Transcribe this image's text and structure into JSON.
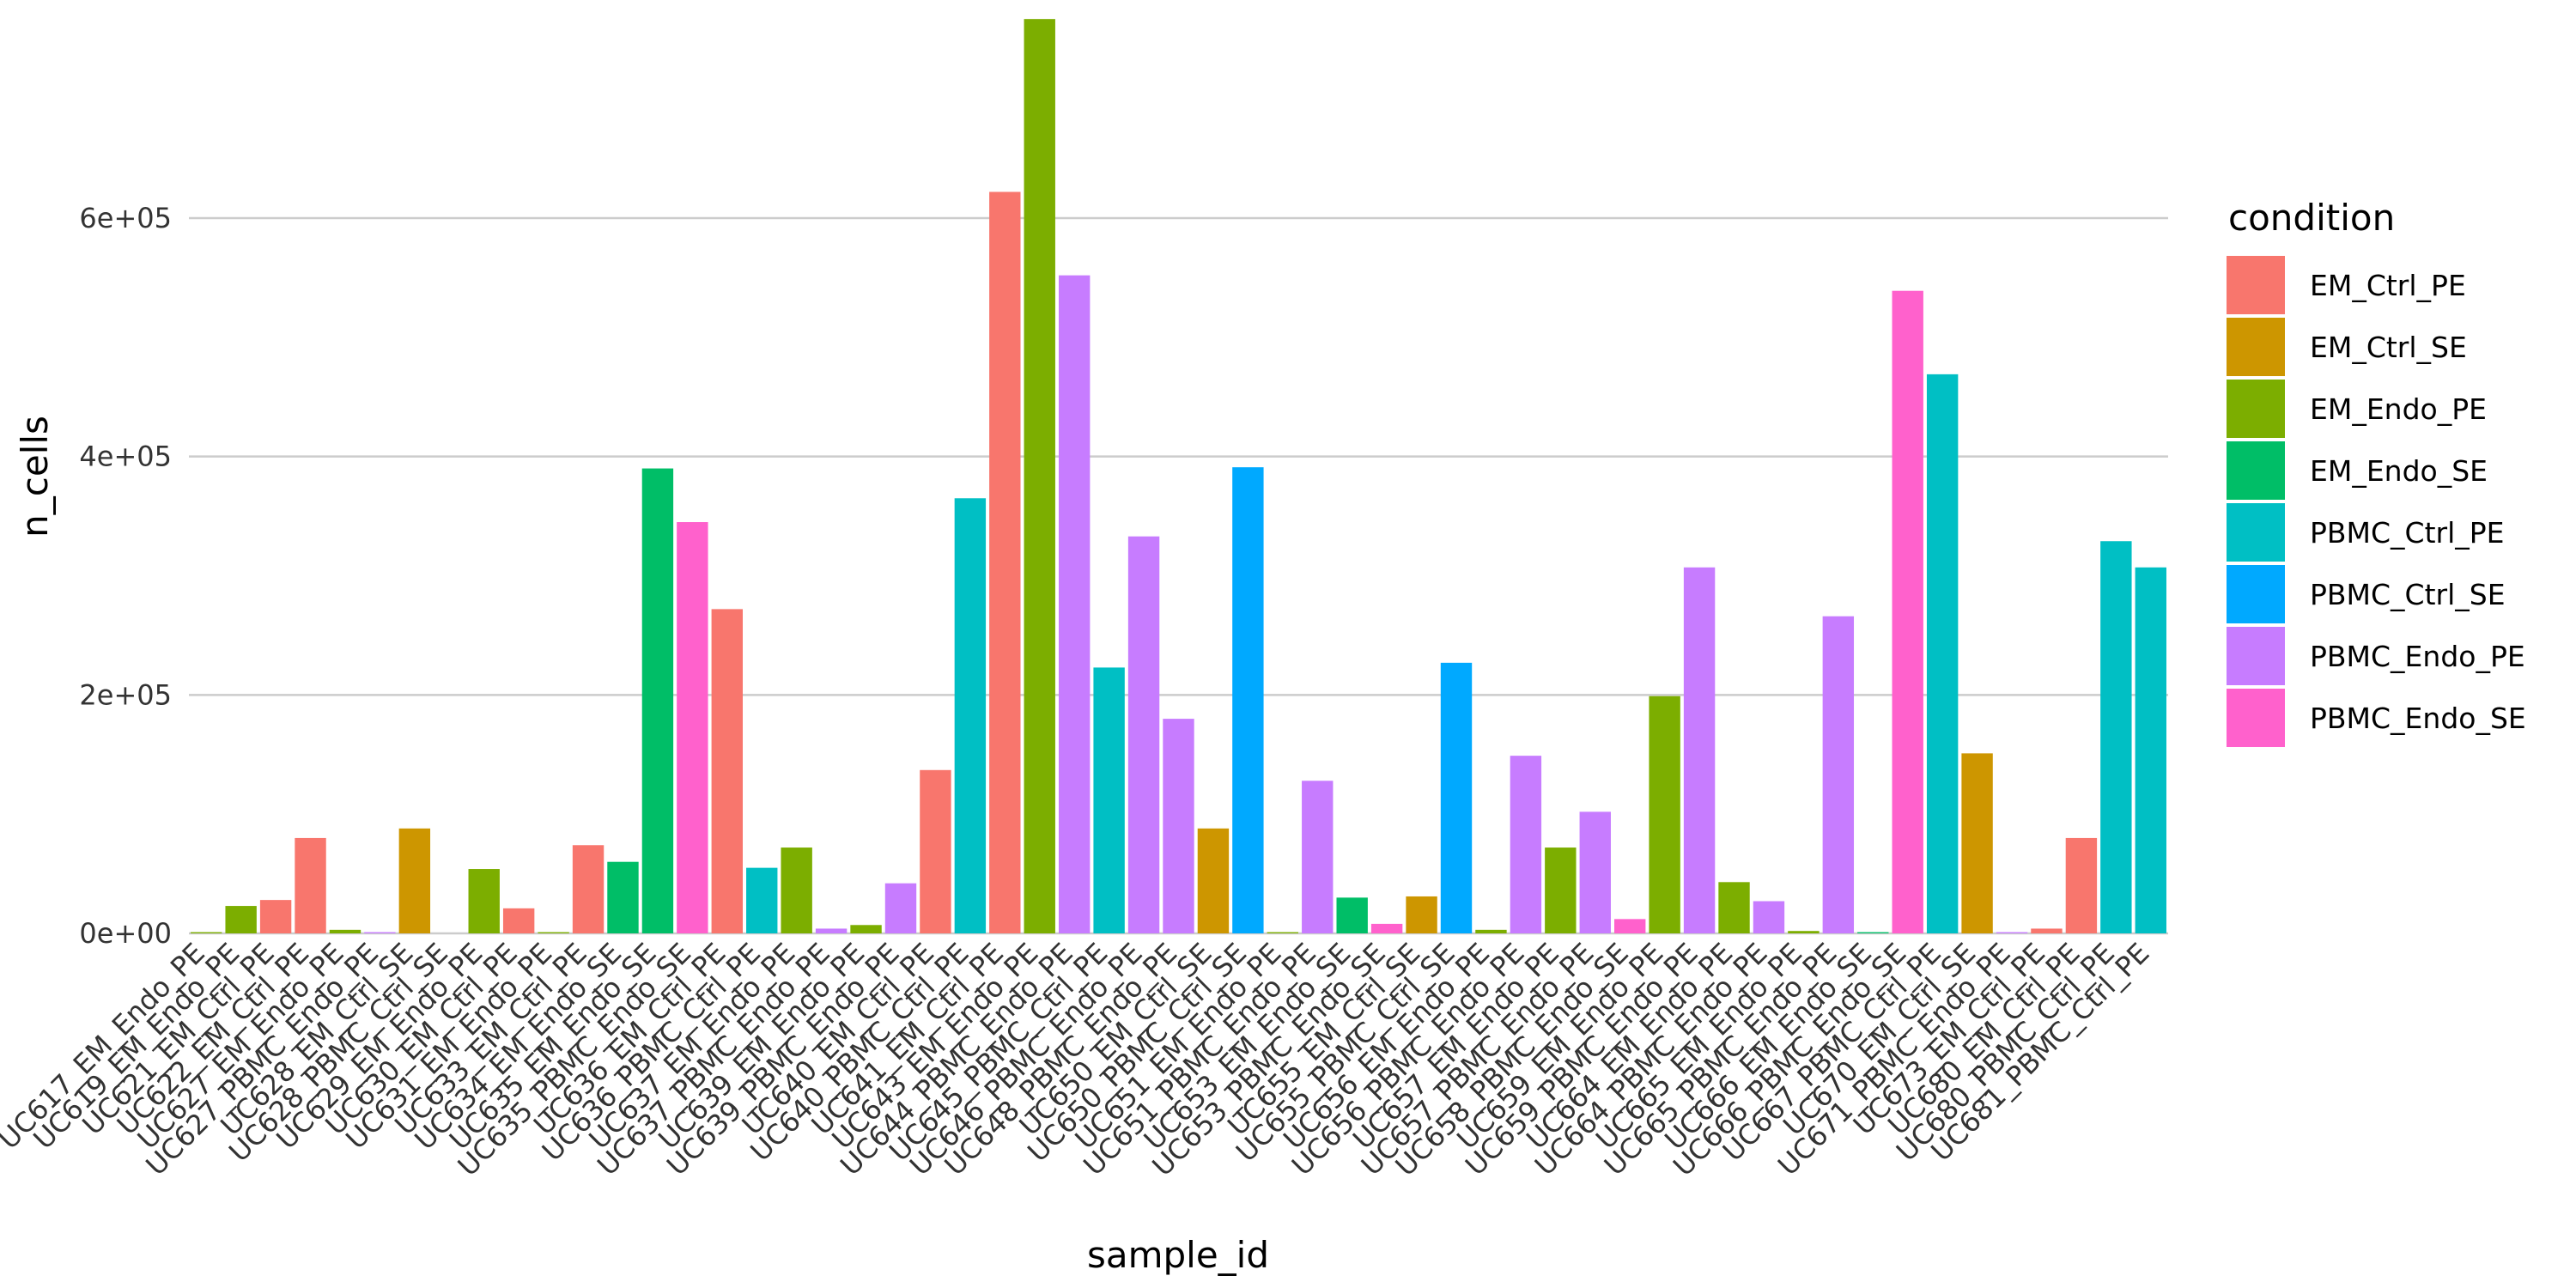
{
  "chart_data": {
    "type": "bar",
    "xlabel": "sample_id",
    "ylabel": "n_cells",
    "ylim": [
      0,
      770000
    ],
    "y_ticks": [
      0,
      200000,
      400000,
      600000
    ],
    "y_tick_labels": [
      "0e+00",
      "2e+05",
      "4e+05",
      "6e+05"
    ],
    "grid": "horizontal major gridlines",
    "legend_position": "right",
    "legend_title": "condition",
    "conditions": [
      {
        "name": "EM_Ctrl_PE",
        "color": "#F8766D"
      },
      {
        "name": "EM_Ctrl_SE",
        "color": "#CD9600"
      },
      {
        "name": "EM_Endo_PE",
        "color": "#7CAE00"
      },
      {
        "name": "EM_Endo_SE",
        "color": "#00BE67"
      },
      {
        "name": "PBMC_Ctrl_PE",
        "color": "#00BFC4"
      },
      {
        "name": "PBMC_Ctrl_SE",
        "color": "#00A9FF"
      },
      {
        "name": "PBMC_Endo_PE",
        "color": "#C77CFF"
      },
      {
        "name": "PBMC_Endo_SE",
        "color": "#FF61CC"
      }
    ],
    "bars": [
      {
        "label": "UC617_EM_Endo_PE",
        "condition": "EM_Endo_PE",
        "value": 1000
      },
      {
        "label": "UC619_EM_Endo_PE",
        "condition": "EM_Endo_PE",
        "value": 23000
      },
      {
        "label": "UC621_EM_Ctrl_PE",
        "condition": "EM_Ctrl_PE",
        "value": 28000
      },
      {
        "label": "UC622_EM_Ctrl_PE",
        "condition": "EM_Ctrl_PE",
        "value": 80000
      },
      {
        "label": "UC627_EM_Endo_PE",
        "condition": "EM_Endo_PE",
        "value": 3000
      },
      {
        "label": "UC627_PBMC_Endo_PE",
        "condition": "PBMC_Endo_PE",
        "value": 1000
      },
      {
        "label": "UC628_EM_Ctrl_SE",
        "condition": "EM_Ctrl_SE",
        "value": 88000
      },
      {
        "label": "UC628_PBMC_Ctrl_SE",
        "condition": "PBMC_Ctrl_SE",
        "value": 0
      },
      {
        "label": "UC629_EM_Endo_PE",
        "condition": "EM_Endo_PE",
        "value": 54000
      },
      {
        "label": "UC630_EM_Ctrl_PE",
        "condition": "EM_Ctrl_PE",
        "value": 21000
      },
      {
        "label": "UC631_EM_Endo_PE",
        "condition": "EM_Endo_PE",
        "value": 1000
      },
      {
        "label": "UC633_EM_Ctrl_PE",
        "condition": "EM_Ctrl_PE",
        "value": 74000
      },
      {
        "label": "UC634_EM_Endo_SE",
        "condition": "EM_Endo_SE",
        "value": 60000
      },
      {
        "label": "UC635_EM_Endo_SE",
        "condition": "EM_Endo_SE",
        "value": 390000
      },
      {
        "label": "UC635_PBMC_Endo_SE",
        "condition": "PBMC_Endo_SE",
        "value": 345000
      },
      {
        "label": "UC636_EM_Ctrl_PE",
        "condition": "EM_Ctrl_PE",
        "value": 272000
      },
      {
        "label": "UC636_PBMC_Ctrl_PE",
        "condition": "PBMC_Ctrl_PE",
        "value": 55000
      },
      {
        "label": "UC637_EM_Endo_PE",
        "condition": "EM_Endo_PE",
        "value": 72000
      },
      {
        "label": "UC637_PBMC_Endo_PE",
        "condition": "PBMC_Endo_PE",
        "value": 4000
      },
      {
        "label": "UC639_EM_Endo_PE",
        "condition": "EM_Endo_PE",
        "value": 7000
      },
      {
        "label": "UC639_PBMC_Endo_PE",
        "condition": "PBMC_Endo_PE",
        "value": 42000
      },
      {
        "label": "UC640_EM_Ctrl_PE",
        "condition": "EM_Ctrl_PE",
        "value": 137000
      },
      {
        "label": "UC640_PBMC_Ctrl_PE",
        "condition": "PBMC_Ctrl_PE",
        "value": 365000
      },
      {
        "label": "UC641_EM_Ctrl_PE",
        "condition": "EM_Ctrl_PE",
        "value": 622000
      },
      {
        "label": "UC643_EM_Endo_PE",
        "condition": "EM_Endo_PE",
        "value": 767000
      },
      {
        "label": "UC644_PBMC_Endo_PE",
        "condition": "PBMC_Endo_PE",
        "value": 552000
      },
      {
        "label": "UC645_PBMC_Ctrl_PE",
        "condition": "PBMC_Ctrl_PE",
        "value": 223000
      },
      {
        "label": "UC646_PBMC_Endo_PE",
        "condition": "PBMC_Endo_PE",
        "value": 333000
      },
      {
        "label": "UC648_PBMC_Endo_PE",
        "condition": "PBMC_Endo_PE",
        "value": 180000
      },
      {
        "label": "UC650_EM_Ctrl_SE",
        "condition": "EM_Ctrl_SE",
        "value": 88000
      },
      {
        "label": "UC650_PBMC_Ctrl_SE",
        "condition": "PBMC_Ctrl_SE",
        "value": 391000
      },
      {
        "label": "UC651_EM_Endo_PE",
        "condition": "EM_Endo_PE",
        "value": 1000
      },
      {
        "label": "UC651_PBMC_Endo_PE",
        "condition": "PBMC_Endo_PE",
        "value": 128000
      },
      {
        "label": "UC653_EM_Endo_SE",
        "condition": "EM_Endo_SE",
        "value": 30000
      },
      {
        "label": "UC653_PBMC_Endo_SE",
        "condition": "PBMC_Endo_SE",
        "value": 8000
      },
      {
        "label": "UC655_EM_Ctrl_SE",
        "condition": "EM_Ctrl_SE",
        "value": 31000
      },
      {
        "label": "UC655_PBMC_Ctrl_SE",
        "condition": "PBMC_Ctrl_SE",
        "value": 227000
      },
      {
        "label": "UC656_EM_Endo_PE",
        "condition": "EM_Endo_PE",
        "value": 3000
      },
      {
        "label": "UC656_PBMC_Endo_PE",
        "condition": "PBMC_Endo_PE",
        "value": 149000
      },
      {
        "label": "UC657_EM_Endo_PE",
        "condition": "EM_Endo_PE",
        "value": 72000
      },
      {
        "label": "UC657_PBMC_Endo_PE",
        "condition": "PBMC_Endo_PE",
        "value": 102000
      },
      {
        "label": "UC658_PBMC_Endo_SE",
        "condition": "PBMC_Endo_SE",
        "value": 12000
      },
      {
        "label": "UC659_EM_Endo_PE",
        "condition": "EM_Endo_PE",
        "value": 199000
      },
      {
        "label": "UC659_PBMC_Endo_PE",
        "condition": "PBMC_Endo_PE",
        "value": 307000
      },
      {
        "label": "UC664_EM_Endo_PE",
        "condition": "EM_Endo_PE",
        "value": 43000
      },
      {
        "label": "UC664_PBMC_Endo_PE",
        "condition": "PBMC_Endo_PE",
        "value": 27000
      },
      {
        "label": "UC665_EM_Endo_PE",
        "condition": "EM_Endo_PE",
        "value": 2000
      },
      {
        "label": "UC665_PBMC_Endo_PE",
        "condition": "PBMC_Endo_PE",
        "value": 266000
      },
      {
        "label": "UC666_EM_Endo_SE",
        "condition": "EM_Endo_SE",
        "value": 1000
      },
      {
        "label": "UC666_PBMC_Endo_SE",
        "condition": "PBMC_Endo_SE",
        "value": 539000
      },
      {
        "label": "UC667_PBMC_Ctrl_PE",
        "condition": "PBMC_Ctrl_PE",
        "value": 469000
      },
      {
        "label": "UC670_EM_Ctrl_SE",
        "condition": "EM_Ctrl_SE",
        "value": 151000
      },
      {
        "label": "UC671_PBMC_Endo_PE",
        "condition": "PBMC_Endo_PE",
        "value": 1000
      },
      {
        "label": "UC673_EM_Ctrl_PE",
        "condition": "EM_Ctrl_PE",
        "value": 4000
      },
      {
        "label": "UC680_EM_Ctrl_PE",
        "condition": "EM_Ctrl_PE",
        "value": 80000
      },
      {
        "label": "UC680_PBMC_Ctrl_PE",
        "condition": "PBMC_Ctrl_PE",
        "value": 329000
      },
      {
        "label": "UC681_PBMC_Ctrl_PE",
        "condition": "PBMC_Ctrl_PE",
        "value": 307000
      }
    ]
  }
}
